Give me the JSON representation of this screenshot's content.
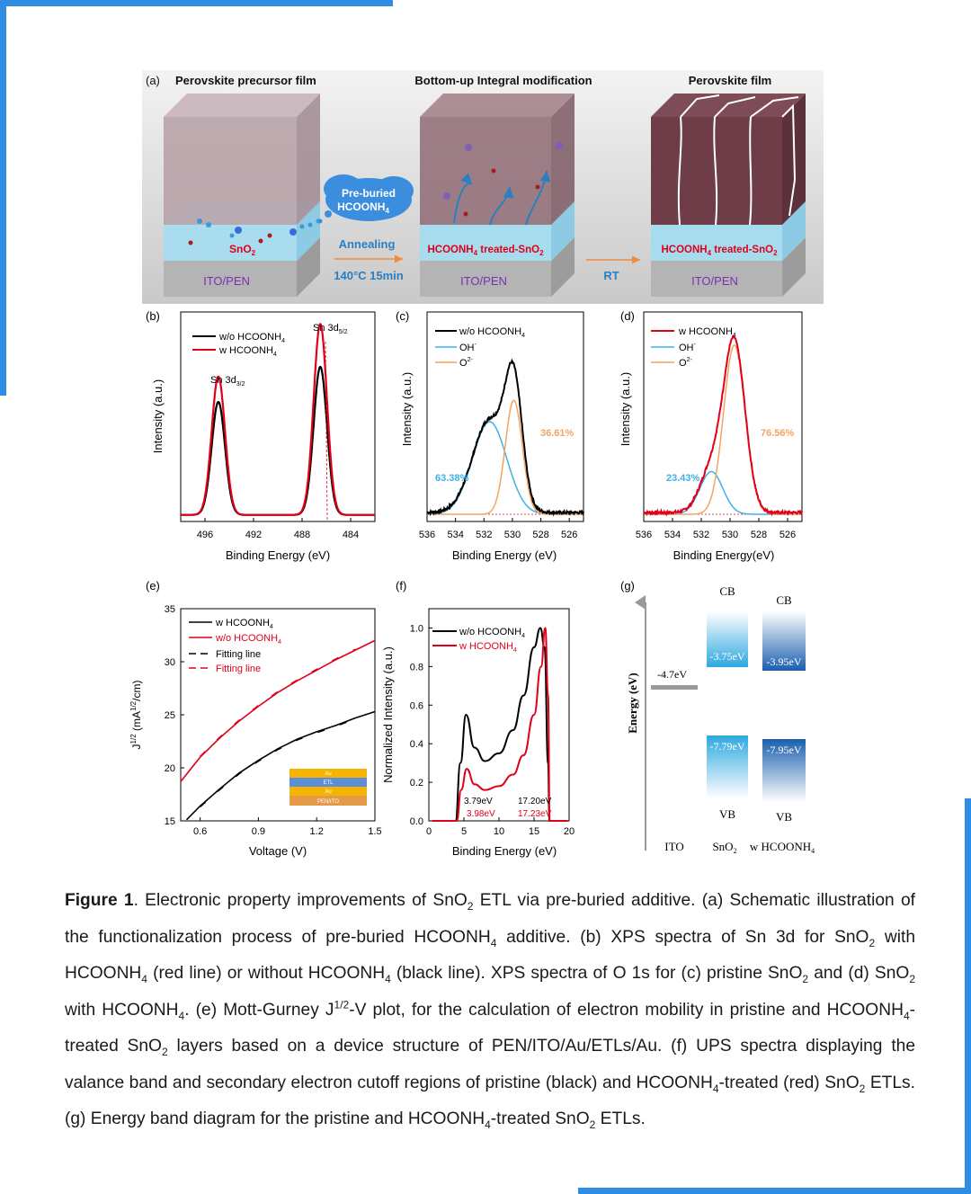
{
  "panel_a": {
    "label": "(a)",
    "stage1_title": "Perovskite precursor film",
    "stage2_title": "Bottom-up Integral modification",
    "stage3_title": "Perovskite film",
    "cloud_line1": "Pre-buried",
    "cloud_line2": "HCOONH",
    "cloud_sub": "4",
    "arrow1_top": "Annealing",
    "arrow1_bottom": "140°C  15min",
    "arrow2": "RT",
    "sno2": "SnO",
    "sno2_sub": "2",
    "treated_main": "HCOONH",
    "treated_sub": "4",
    "treated_rest": " treated-SnO",
    "treated_sub2": "2",
    "substrate": "ITO/PEN",
    "colors": {
      "ito": "#b4b4b4",
      "sno2": "#a7dcef",
      "precursor": "#b59fa5",
      "perovskite": "#6e3d47",
      "label_red": "#e0001a",
      "label_purple": "#7b2fb5",
      "arrow_orange": "#f08a3c",
      "cloud": "#3b8ede"
    }
  },
  "panel_b": {
    "label": "(b)",
    "ylabel": "Intensity (a.u.)",
    "xlabel": "Binding Energy (eV)",
    "legend": [
      "w/o HCOONH",
      "w  HCOONH"
    ],
    "legend_sub": "4",
    "peak1": "Sn 3d",
    "peak1_sub": "3/2",
    "peak2": "Sn 3d",
    "peak2_sub": "5/2"
  },
  "panel_c": {
    "label": "(c)",
    "ylabel": "Intensity (a.u.)",
    "xlabel": "Binding Energy (eV)",
    "legend": [
      "w/o HCOONH",
      "OH",
      "O"
    ],
    "legend_sub": "4",
    "legend_sup_oh": "-",
    "legend_sup_o": "2-",
    "pct_oh": "63.38%",
    "pct_o": "36.61%"
  },
  "panel_d": {
    "label": "(d)",
    "ylabel": "Intensity (a.u.)",
    "xlabel": "Binding Energy(eV)",
    "legend": [
      "w  HCOONH",
      "OH",
      "O"
    ],
    "legend_sub": "4",
    "legend_sup_oh": "-",
    "legend_sup_o": "2-",
    "pct_oh": "23.43%",
    "pct_o": "76.56%"
  },
  "panel_e": {
    "label": "(e)",
    "ylabel": "J",
    "ylabel_sup": "1/2",
    "ylabel_unit": " (mA",
    "ylabel_sup2": "1/2",
    "ylabel_end": "/cm)",
    "xlabel": "Voltage (V)",
    "legend": [
      "w HCOONH",
      "w/o HCOONH",
      "Fitting line",
      "Fitting line"
    ],
    "legend_sub": "4",
    "inset_layers": [
      "Au",
      "ETL",
      "Au",
      "PEN/ITO"
    ]
  },
  "panel_f": {
    "label": "(f)",
    "ylabel": "Normalized Intensity (a.u.)",
    "xlabel": "Binding Energy (eV)",
    "legend": [
      "w/o HCOONH",
      "w HCOONH"
    ],
    "legend_sub": "4",
    "ann_black_left": "3.79eV",
    "ann_black_right": "17.20eV",
    "ann_red_left": "3.98eV",
    "ann_red_right": "17.23eV"
  },
  "panel_g": {
    "label": "(g)",
    "ylabel": "Energy (eV)",
    "ito_value": "-4.7eV",
    "cb": "CB",
    "vb": "VB",
    "sno2_cb": "-3.75eV",
    "treated_cb": "-3.95eV",
    "sno2_vb": "-7.79eV",
    "treated_vb": "-7.95eV",
    "x_ito": "ITO",
    "x_sno2": "SnO",
    "x_sno2_sub": "2",
    "x_treated": "w HCOONH",
    "x_treated_sub": "4"
  },
  "chart_data": [
    {
      "panel": "b",
      "type": "line",
      "title": "",
      "xlabel": "Binding Energy (eV)",
      "ylabel": "Intensity (a.u.)",
      "xlim": [
        498,
        482
      ],
      "xticks": [
        496,
        492,
        488,
        484
      ],
      "series": [
        {
          "name": "w/o HCOONH4",
          "color": "#000000",
          "peaks": [
            {
              "center": 494.9,
              "height": 0.58,
              "width": 0.55
            },
            {
              "center": 486.5,
              "height": 0.76,
              "width": 0.55
            }
          ]
        },
        {
          "name": "w HCOONH4",
          "color": "#e0001a",
          "peaks": [
            {
              "center": 494.9,
              "height": 0.71,
              "width": 0.55
            },
            {
              "center": 486.5,
              "height": 0.98,
              "width": 0.55
            }
          ]
        }
      ]
    },
    {
      "panel": "c",
      "type": "line",
      "title": "",
      "xlabel": "Binding Energy (eV)",
      "ylabel": "Intensity (a.u.)",
      "xlim": [
        536,
        525
      ],
      "xticks": [
        536,
        534,
        532,
        530,
        528,
        526
      ],
      "series": [
        {
          "name": "w/o HCOONH4",
          "color": "#000000"
        },
        {
          "name": "OH-",
          "color": "#3fb0ea",
          "center": 531.6,
          "height": 0.52,
          "width": 1.2,
          "percent": 63.38
        },
        {
          "name": "O2-",
          "color": "#f4a460",
          "center": 529.9,
          "height": 0.64,
          "width": 0.6,
          "percent": 36.61
        }
      ]
    },
    {
      "panel": "d",
      "type": "line",
      "title": "",
      "xlabel": "Binding Energy(eV)",
      "ylabel": "Intensity (a.u.)",
      "xlim": [
        536,
        525
      ],
      "xticks": [
        536,
        534,
        532,
        530,
        528,
        526
      ],
      "series": [
        {
          "name": "w HCOONH4",
          "color": "#e0001a"
        },
        {
          "name": "OH-",
          "color": "#3fb0ea",
          "center": 531.3,
          "height": 0.24,
          "width": 0.8,
          "percent": 23.43
        },
        {
          "name": "O2-",
          "color": "#f4a460",
          "center": 529.7,
          "height": 0.95,
          "width": 0.75,
          "percent": 76.56
        }
      ]
    },
    {
      "panel": "e",
      "type": "line",
      "title": "",
      "xlabel": "Voltage (V)",
      "ylabel": "J1/2 (mA1/2/cm)",
      "xlim": [
        0.5,
        1.5
      ],
      "ylim": [
        15,
        35
      ],
      "xticks": [
        0.6,
        0.9,
        1.2,
        1.5
      ],
      "yticks": [
        15,
        20,
        25,
        30,
        35
      ],
      "series": [
        {
          "name": "w HCOONH4",
          "color": "#000000",
          "x": [
            0.53,
            0.6,
            0.7,
            0.8,
            0.9,
            1.0,
            1.1,
            1.2,
            1.3,
            1.4,
            1.5
          ],
          "y": [
            15.1,
            16.4,
            18.0,
            19.5,
            20.7,
            21.8,
            22.7,
            23.4,
            24.0,
            24.7,
            25.3
          ]
        },
        {
          "name": "w/o HCOONH4",
          "color": "#e0001a",
          "x": [
            0.5,
            0.6,
            0.7,
            0.8,
            0.9,
            1.0,
            1.1,
            1.2,
            1.3,
            1.4,
            1.5
          ],
          "y": [
            18.7,
            21.0,
            22.8,
            24.4,
            25.8,
            27.1,
            28.2,
            29.2,
            30.2,
            31.1,
            32.0
          ]
        }
      ]
    },
    {
      "panel": "f",
      "type": "line",
      "title": "",
      "xlabel": "Binding Energy (eV)",
      "ylabel": "Normalized Intensity (a.u.)",
      "xlim": [
        0,
        20
      ],
      "ylim": [
        0,
        1.1
      ],
      "xticks": [
        0,
        5,
        10,
        15,
        20
      ],
      "yticks": [
        0.0,
        0.2,
        0.4,
        0.6,
        0.8,
        1.0
      ],
      "series": [
        {
          "name": "w/o HCOONH4",
          "color": "#000000",
          "x": [
            3.79,
            4.5,
            5.3,
            6.5,
            8,
            10,
            12,
            13.5,
            15,
            15.9,
            16.5,
            17.0,
            17.2
          ],
          "y": [
            0.0,
            0.3,
            0.55,
            0.38,
            0.31,
            0.35,
            0.47,
            0.65,
            0.9,
            1.0,
            0.9,
            0.3,
            0.0
          ]
        },
        {
          "name": "w HCOONH4",
          "color": "#e0001a",
          "x": [
            3.98,
            4.6,
            5.4,
            6.5,
            8,
            10,
            12,
            13.5,
            15,
            16.0,
            16.6,
            17.0,
            17.23
          ],
          "y": [
            0.0,
            0.16,
            0.27,
            0.19,
            0.16,
            0.18,
            0.24,
            0.34,
            0.55,
            0.8,
            1.0,
            0.65,
            0.0
          ]
        }
      ]
    },
    {
      "panel": "g",
      "type": "bar",
      "title": "",
      "ylabel": "Energy (eV)",
      "categories": [
        "ITO",
        "SnO2",
        "w HCOONH4"
      ],
      "values": {
        "ITO": -4.7,
        "SnO2": {
          "CB": -3.75,
          "VB": -7.79
        },
        "w HCOONH4": {
          "CB": -3.95,
          "VB": -7.95
        }
      }
    }
  ],
  "caption": {
    "lead": "Figure 1",
    "segments": [
      ". Electronic property improvements of SnO",
      " ETL via pre-buried additive. (a) Schematic illustration of the functionalization process of pre-buried HCOONH",
      " additive. (b) XPS spectra of Sn 3d for SnO",
      " with HCOONH",
      " (red line) or without HCOONH",
      " (black line). XPS spectra of O 1s for (c) pristine SnO",
      " and (d) SnO",
      " with HCOONH",
      ". (e) Mott-Gurney J",
      "-V plot, for the calculation of electron mobility in pristine and HCOONH",
      "-treated SnO",
      " layers based on a device structure of PEN/ITO/Au/ETLs/Au. (f) UPS spectra displaying the valance band and secondary electron cutoff regions of pristine (black) and HCOONH",
      "-treated (red) SnO",
      " ETLs. (g) Energy band diagram for the pristine and HCOONH",
      "-treated SnO",
      " ETLs."
    ],
    "subs": [
      "2",
      "4",
      "2",
      "4",
      "4",
      "2",
      "2",
      "4",
      "1/2",
      "4",
      "2",
      "4",
      "2",
      "4",
      "2"
    ]
  }
}
